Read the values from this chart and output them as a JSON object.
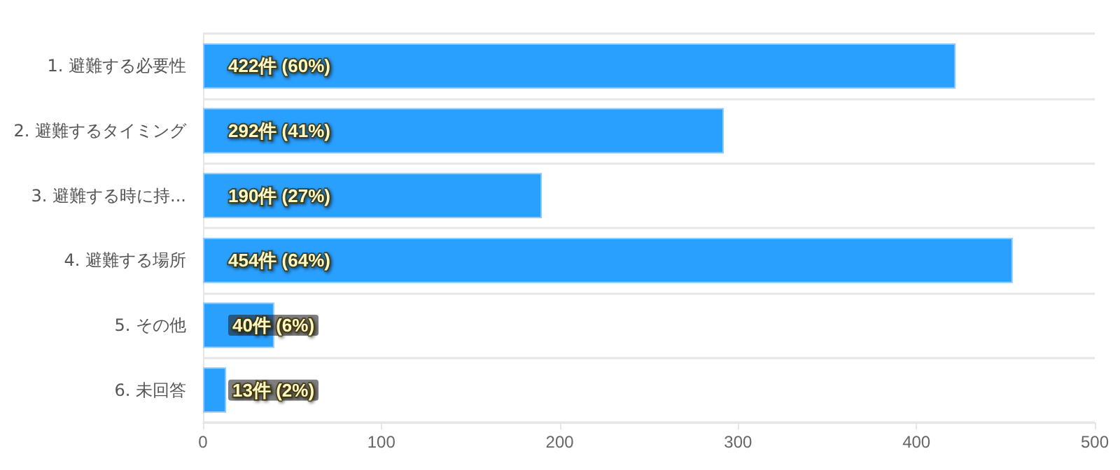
{
  "chart_data": {
    "type": "bar",
    "orientation": "horizontal",
    "categories": [
      "1. 避難する必要性",
      "2. 避難するタイミング",
      "3. 避難する時に持...",
      "4. 避難する場所",
      "5. その他",
      "6. 未回答"
    ],
    "values": [
      422,
      292,
      190,
      454,
      40,
      13
    ],
    "value_labels": [
      "422件 (60%)",
      "292件 (41%)",
      "190件 (27%)",
      "454件 (64%)",
      "40件 (6%)",
      "13件 (2%)"
    ],
    "color": "#299ffe",
    "xlim": [
      0,
      500
    ],
    "xticks": [
      0,
      100,
      200,
      300,
      400,
      500
    ],
    "grid": "y"
  }
}
